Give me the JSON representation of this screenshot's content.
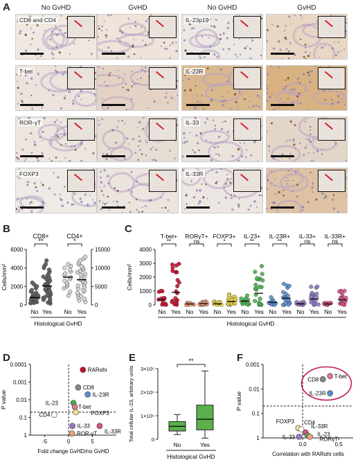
{
  "panel_letters": {
    "a": "A",
    "b": "B",
    "c": "C",
    "d": "D",
    "e": "E",
    "f": "F"
  },
  "panelA": {
    "headers": [
      "No GvHD",
      "GvHD",
      "No GvHD",
      "GvHD"
    ],
    "row_labels_left": [
      "CD8 and CD4",
      "T-bet",
      "ROR-γT",
      "FOXP3"
    ],
    "row_labels_right": [
      "IL-23p19",
      "IL-23R",
      "IL-33",
      "IL-33R"
    ]
  },
  "colors": {
    "red": "#c8102e",
    "red_light": "#e07a8e",
    "orange": "#f0a07a",
    "gray": "#8a8a8a",
    "dark": "#555555",
    "green": "#4caf50",
    "blue": "#5b8fd1",
    "purple": "#8e7cc3",
    "pink": "#d94f8a",
    "yellow": "#f2e28a",
    "highlight": "#c2185b"
  },
  "panelB": {
    "series": [
      {
        "name": "CD8+",
        "axis": "left",
        "no": [
          180,
          220,
          260,
          300,
          350,
          400,
          450,
          500,
          550,
          600,
          650,
          700,
          750,
          800,
          900,
          950,
          1000,
          1100,
          1200,
          1300,
          1450,
          1600,
          1800,
          2000,
          2200,
          2400
        ],
        "yes": [
          150,
          250,
          350,
          450,
          550,
          650,
          750,
          850,
          950,
          1050,
          1150,
          1250,
          1350,
          1450,
          1550,
          1650,
          1750,
          1850,
          1950,
          2050,
          2150,
          2250,
          2350,
          2450,
          2550,
          2650,
          2750,
          2850,
          2950,
          3050,
          3200,
          3400,
          3600,
          3800,
          4000,
          4200,
          4400,
          4800
        ]
      },
      {
        "name": "CD4+",
        "axis": "right",
        "no": [
          2500,
          3500,
          4500,
          5000,
          5500,
          6000,
          6500,
          7000,
          7500,
          8000,
          8500,
          9000,
          9500,
          10000,
          10500,
          11000
        ],
        "yes": [
          800,
          1200,
          1600,
          2000,
          2400,
          2800,
          3200,
          3600,
          4000,
          4400,
          4800,
          5200,
          5600,
          6000,
          6400,
          6800,
          7200,
          7600,
          8000,
          8400,
          8800,
          9200,
          9600,
          10000,
          10400,
          11000,
          11500,
          12000,
          12500,
          13000
        ]
      }
    ],
    "ylabel": "Cells/mm²",
    "yticks_left": [
      "0",
      "2000",
      "4000",
      "6000"
    ],
    "yticks_right": [
      "0",
      "5000",
      "10000",
      "15000"
    ],
    "ylim_left": [
      0,
      6000
    ],
    "ylim_right": [
      0,
      15000
    ],
    "x_cats": [
      "No",
      "Yes"
    ],
    "xlabel": "Histological GvHD",
    "sig": [
      "**",
      "*"
    ]
  },
  "panelC": {
    "ylabel": "Cells/mm²",
    "yticks": [
      "0",
      "1000",
      "2000",
      "3000",
      "4000"
    ],
    "ylim": [
      0,
      4000
    ],
    "xlabel": "Histological GvHD",
    "groups": [
      {
        "name": "T-bet+",
        "sig": "**",
        "color": "#c8102e"
      },
      {
        "name": "RORγT+",
        "sig": "ns",
        "color": "#f0a07a"
      },
      {
        "name": "FOXP3+",
        "sig": "*",
        "color": "#e8d24a"
      },
      {
        "name": "IL-23+",
        "sig": "**",
        "color": "#4caf50"
      },
      {
        "name": "IL-23R+",
        "sig": "**",
        "color": "#5b8fd1"
      },
      {
        "name": "IL-33+",
        "sig": "ns",
        "color": "#8e7cc3"
      },
      {
        "name": "IL-33R+",
        "sig": "ns",
        "color": "#d94f8a"
      }
    ],
    "x_cats": [
      "No",
      "Yes"
    ]
  },
  "panelD": {
    "ylabel": "P value",
    "xlabel": "Fold change GvHD/no GvHD",
    "yticks": [
      "0.0001",
      "0.001",
      "0.01",
      "0.1",
      "1"
    ],
    "xticks": [
      "-5",
      "0",
      "5"
    ],
    "xlim": [
      -8,
      10
    ],
    "points": [
      {
        "label": "RARαhi",
        "x": 3.0,
        "y": 0.0002,
        "color": "#c8102e"
      },
      {
        "label": "CD8",
        "x": 2.0,
        "y": 0.002,
        "color": "#8a8a8a"
      },
      {
        "label": "IL-23R",
        "x": 4.0,
        "y": 0.005,
        "color": "#5b8fd1"
      },
      {
        "label": "IL-23",
        "x": 1.0,
        "y": 0.015,
        "color": "#4caf50"
      },
      {
        "label": "T-bet",
        "x": 1.3,
        "y": 0.025,
        "color": "#e07a8e"
      },
      {
        "label": "FOXP3",
        "x": 1.5,
        "y": 0.05,
        "color": "#f2e28a"
      },
      {
        "label": "CD4",
        "x": -3.0,
        "y": 0.07,
        "color": "#ffffff"
      },
      {
        "label": "IL-33",
        "x": 0.8,
        "y": 0.3,
        "color": "#8e7cc3"
      },
      {
        "label": "IL-33R",
        "x": 6.5,
        "y": 0.3,
        "color": "#d94f8a"
      },
      {
        "label": "ROR-γT",
        "x": 0.7,
        "y": 0.8,
        "color": "#f0a07a"
      }
    ]
  },
  "panelE": {
    "ylabel": "Total cellular IL-23, arbitrary units",
    "yticks": [
      "0",
      "1×10⁵",
      "2×10⁵",
      "3×10⁵"
    ],
    "ylim": [
      0,
      300000
    ],
    "x_cats": [
      "No",
      "Yes"
    ],
    "xlabel": "Histological GvHD",
    "sig": "**",
    "boxes": [
      {
        "cat": "No",
        "min": 20000,
        "q1": 35000,
        "median": 55000,
        "q3": 75000,
        "max": 105000
      },
      {
        "cat": "Yes",
        "min": 5000,
        "q1": 40000,
        "median": 85000,
        "q3": 145000,
        "max": 290000
      }
    ]
  },
  "panelF": {
    "ylabel": "P value",
    "xlabel": "Correlation with RARαhi cells",
    "yticks": [
      "0.001",
      "0.01",
      "0.1",
      "1"
    ],
    "xticks": [
      "0.0",
      "0.5"
    ],
    "xlim": [
      -0.55,
      0.7
    ],
    "points": [
      {
        "label": "CD8",
        "x": 0.28,
        "y": 0.004,
        "color": "#8a8a8a"
      },
      {
        "label": "T-bet",
        "x": 0.38,
        "y": 0.003,
        "color": "#e07a8e"
      },
      {
        "label": "IL-23R",
        "x": 0.38,
        "y": 0.015,
        "color": "#5b8fd1"
      },
      {
        "label": "FOXP3",
        "x": -0.06,
        "y": 0.4,
        "color": "#f2e28a"
      },
      {
        "label": "CD4",
        "x": -0.02,
        "y": 0.45,
        "color": "#ffffff"
      },
      {
        "label": "IL-33R",
        "x": 0.04,
        "y": 0.6,
        "color": "#d94f8a"
      },
      {
        "label": "IL-23",
        "x": 0.07,
        "y": 0.8,
        "color": "#4caf50"
      },
      {
        "label": "IL-33",
        "x": -0.05,
        "y": 0.9,
        "color": "#8e7cc3"
      },
      {
        "label": "RORγT",
        "x": 0.1,
        "y": 0.9,
        "color": "#f0a07a"
      }
    ]
  }
}
